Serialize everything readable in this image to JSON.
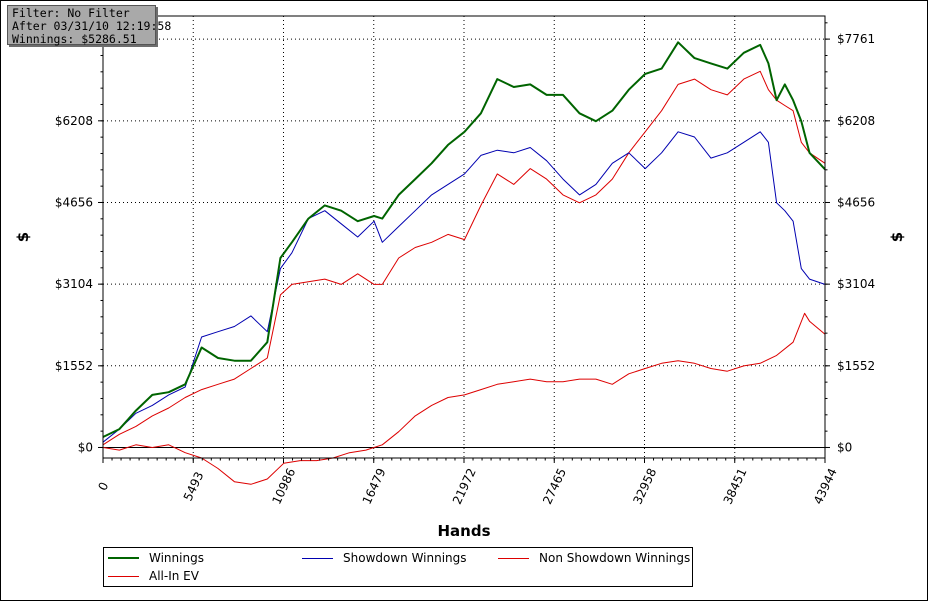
{
  "info": {
    "filter": "Filter: No Filter",
    "after": "After 03/31/10 12:19:58",
    "winnings": "Winnings: $5286.51"
  },
  "chart_data": {
    "type": "line",
    "xlabel": "Hands",
    "ylabel": "$",
    "xlim": [
      0,
      43944
    ],
    "ylim": [
      -200,
      8200
    ],
    "x_ticks": [
      "0",
      "5493",
      "10986",
      "16479",
      "21972",
      "27465",
      "32958",
      "38451",
      "43944"
    ],
    "x_tick_values": [
      0,
      5493,
      10986,
      16479,
      21972,
      27465,
      32958,
      38451,
      43944
    ],
    "y_ticks_left": [
      "$0",
      "$1552",
      "$3104",
      "$4656",
      "$6208"
    ],
    "y_ticks_right": [
      "$0",
      "$1552",
      "$3104",
      "$4656",
      "$6208",
      "$7761"
    ],
    "y_tick_values_left": [
      0,
      1552,
      3104,
      4656,
      6208
    ],
    "y_tick_values_right": [
      0,
      1552,
      3104,
      4656,
      6208,
      7761
    ],
    "grid": true,
    "legend_position": "bottom",
    "series": [
      {
        "name": "Winnings",
        "color": "#006400",
        "width": 2,
        "x": [
          0,
          1000,
          2000,
          3000,
          4000,
          5000,
          6000,
          7000,
          8000,
          9000,
          10000,
          10800,
          11500,
          12500,
          13500,
          14500,
          15500,
          16500,
          17000,
          18000,
          19000,
          20000,
          21000,
          22000,
          23000,
          24000,
          25000,
          26000,
          27000,
          28000,
          29000,
          30000,
          31000,
          32000,
          33000,
          34000,
          35000,
          36000,
          37000,
          38000,
          39000,
          40000,
          40500,
          41000,
          41500,
          42000,
          42500,
          43000,
          43944
        ],
        "y": [
          200,
          350,
          700,
          1000,
          1050,
          1200,
          1900,
          1700,
          1650,
          1650,
          2000,
          3600,
          3900,
          4350,
          4600,
          4500,
          4300,
          4400,
          4350,
          4800,
          5100,
          5400,
          5750,
          6000,
          6350,
          7000,
          6850,
          6900,
          6700,
          6700,
          6350,
          6200,
          6400,
          6800,
          7100,
          7200,
          7700,
          7400,
          7300,
          7200,
          7500,
          7650,
          7300,
          6600,
          6900,
          6600,
          6200,
          5600,
          5287
        ]
      },
      {
        "name": "Showdown Winnings",
        "color": "#0000b0",
        "width": 1,
        "x": [
          0,
          1000,
          2000,
          3000,
          4000,
          5000,
          6000,
          7000,
          8000,
          9000,
          10000,
          10800,
          11500,
          12500,
          13500,
          14500,
          15500,
          16500,
          17000,
          18000,
          19000,
          20000,
          21000,
          22000,
          23000,
          24000,
          25000,
          26000,
          27000,
          28000,
          29000,
          30000,
          31000,
          32000,
          33000,
          34000,
          35000,
          36000,
          37000,
          38000,
          39000,
          40000,
          40500,
          41000,
          41500,
          42000,
          42500,
          43000,
          43944
        ],
        "y": [
          100,
          350,
          650,
          800,
          1000,
          1150,
          2100,
          2200,
          2300,
          2500,
          2200,
          3400,
          3700,
          4350,
          4500,
          4250,
          4000,
          4300,
          3900,
          4200,
          4500,
          4800,
          5000,
          5200,
          5550,
          5650,
          5600,
          5700,
          5450,
          5100,
          4800,
          5000,
          5400,
          5600,
          5300,
          5600,
          6000,
          5900,
          5500,
          5600,
          5800,
          6000,
          5800,
          4650,
          4500,
          4300,
          3400,
          3200,
          3100
        ]
      },
      {
        "name": "Non Showdown Winnings",
        "color": "#dd0000",
        "width": 1,
        "x": [
          0,
          1000,
          2000,
          3000,
          4000,
          5000,
          6000,
          7000,
          8000,
          9000,
          10000,
          10800,
          11500,
          12500,
          13500,
          14500,
          15500,
          16500,
          17000,
          18000,
          19000,
          20000,
          21000,
          22000,
          23000,
          24000,
          25000,
          26000,
          27000,
          28000,
          29000,
          30000,
          31000,
          32000,
          33000,
          34000,
          35000,
          36000,
          37000,
          38000,
          39000,
          40000,
          40500,
          41000,
          41500,
          42000,
          42500,
          43000,
          43944
        ],
        "y": [
          50,
          250,
          400,
          600,
          750,
          950,
          1100,
          1200,
          1300,
          1500,
          1700,
          2900,
          3100,
          3150,
          3200,
          3100,
          3300,
          3100,
          3100,
          3600,
          3800,
          3900,
          4050,
          3950,
          4600,
          5200,
          5000,
          5300,
          5100,
          4800,
          4650,
          4800,
          5100,
          5600,
          6000,
          6400,
          6900,
          7000,
          6800,
          6700,
          7000,
          7150,
          6800,
          6600,
          6500,
          6400,
          5800,
          5600,
          5400
        ]
      },
      {
        "name": "All-In EV",
        "color": "#dd0000",
        "width": 1,
        "x": [
          0,
          1000,
          2000,
          3000,
          4000,
          5000,
          6000,
          7000,
          8000,
          9000,
          10000,
          11000,
          12000,
          13000,
          14000,
          15000,
          16000,
          17000,
          18000,
          19000,
          20000,
          21000,
          22000,
          23000,
          24000,
          25000,
          26000,
          27000,
          28000,
          29000,
          30000,
          31000,
          32000,
          33000,
          34000,
          35000,
          36000,
          37000,
          38000,
          39000,
          40000,
          41000,
          42000,
          42700,
          43000,
          43944
        ],
        "y": [
          0,
          -50,
          50,
          0,
          50,
          -100,
          -200,
          -400,
          -650,
          -700,
          -600,
          -300,
          -250,
          -250,
          -200,
          -100,
          -50,
          50,
          300,
          600,
          800,
          950,
          1000,
          1100,
          1200,
          1250,
          1300,
          1250,
          1250,
          1300,
          1300,
          1200,
          1400,
          1500,
          1600,
          1650,
          1600,
          1500,
          1450,
          1550,
          1600,
          1750,
          2000,
          2550,
          2400,
          2150
        ]
      }
    ]
  },
  "legend": {
    "items": [
      {
        "label": "Winnings",
        "color": "#006400",
        "width": 2
      },
      {
        "label": "Showdown Winnings",
        "color": "#0000b0",
        "width": 1
      },
      {
        "label": "Non Showdown Winnings",
        "color": "#dd0000",
        "width": 1
      },
      {
        "label": "All-In EV",
        "color": "#dd0000",
        "width": 1
      }
    ]
  }
}
